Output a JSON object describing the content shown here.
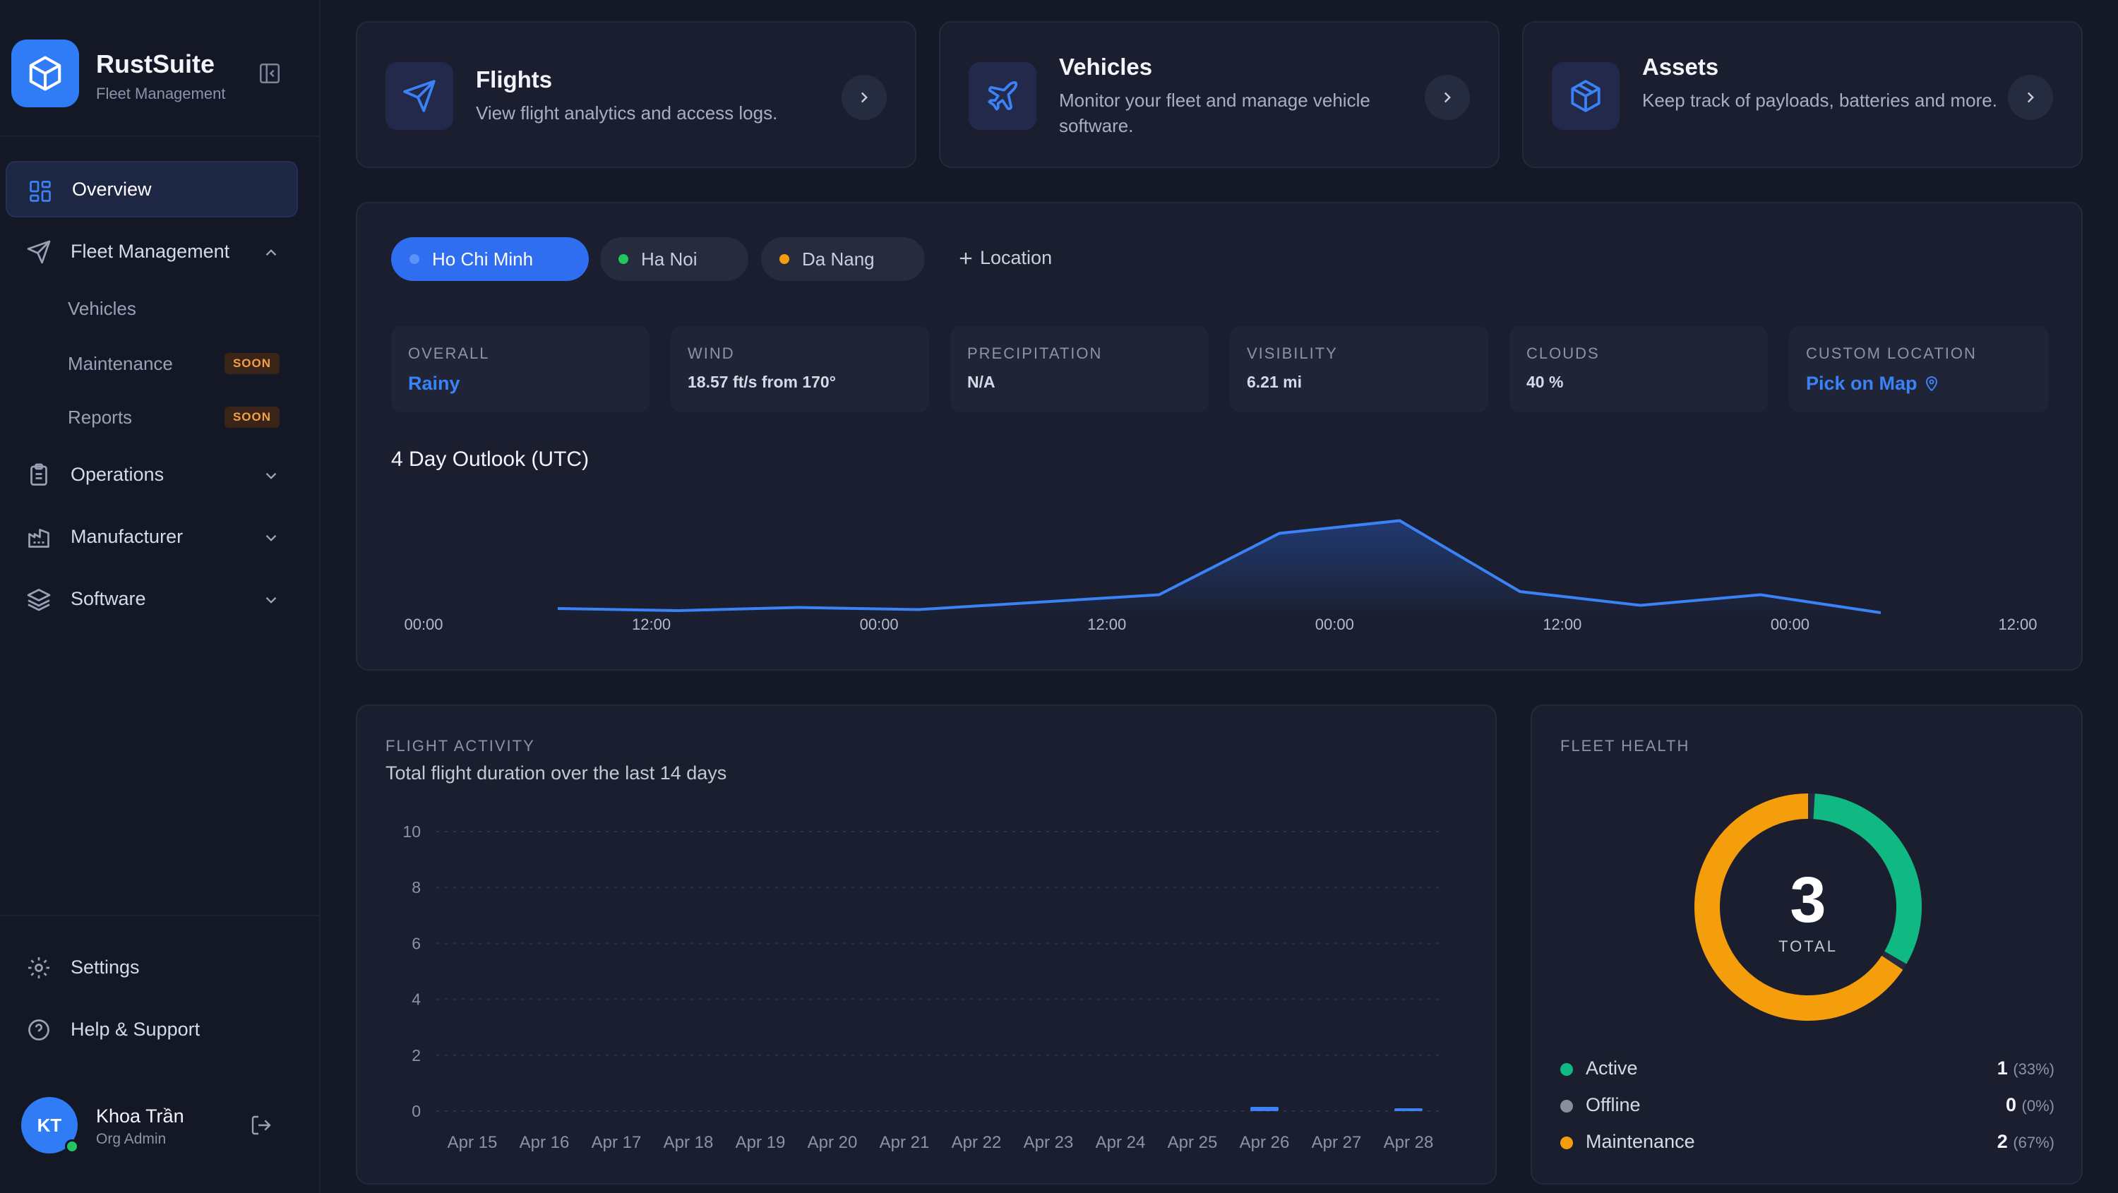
{
  "brand": {
    "name": "RustSuite",
    "subtitle": "Fleet Management"
  },
  "nav": {
    "overview": "Overview",
    "fleet_management": "Fleet Management",
    "fleet_sub": [
      {
        "label": "Vehicles",
        "badge": ""
      },
      {
        "label": "Maintenance",
        "badge": "SOON"
      },
      {
        "label": "Reports",
        "badge": "SOON"
      }
    ],
    "operations": "Operations",
    "manufacturer": "Manufacturer",
    "software": "Software",
    "settings": "Settings",
    "help": "Help & Support"
  },
  "user": {
    "initials": "KT",
    "name": "Khoa Trần",
    "role": "Org Admin"
  },
  "top_cards": [
    {
      "title": "Flights",
      "desc": "View flight analytics and access logs.",
      "icon": "send-icon"
    },
    {
      "title": "Vehicles",
      "desc": "Monitor your fleet and manage vehicle software.",
      "icon": "plane-icon"
    },
    {
      "title": "Assets",
      "desc": "Keep track of payloads, batteries and more.",
      "icon": "box-icon"
    }
  ],
  "weather": {
    "locations": [
      {
        "name": "Ho Chi Minh",
        "dot": "#3b82f6",
        "active": true
      },
      {
        "name": "Ha Noi",
        "dot": "#22c55e",
        "active": false
      },
      {
        "name": "Da Nang",
        "dot": "#f59e0b",
        "active": false
      }
    ],
    "add_location": "Location",
    "metrics": [
      {
        "label": "OVERALL",
        "value": "Rainy"
      },
      {
        "label": "WIND",
        "value": "18.57 ft/s from 170°"
      },
      {
        "label": "PRECIPITATION",
        "value": "N/A"
      },
      {
        "label": "VISIBILITY",
        "value": "6.21 mi"
      },
      {
        "label": "CLOUDS",
        "value": "40 %"
      },
      {
        "label": "CUSTOM LOCATION",
        "value": "Pick on Map"
      }
    ],
    "outlook_title": "4 Day Outlook (UTC)",
    "outlook_ticks": [
      "00:00",
      "12:00",
      "00:00",
      "12:00",
      "00:00",
      "12:00",
      "00:00",
      "12:00"
    ],
    "outlook_values": [
      0.12,
      0.1,
      0.13,
      0.11,
      0.18,
      0.25,
      0.83,
      0.95,
      0.28,
      0.15,
      0.25,
      0.08
    ]
  },
  "flight_activity": {
    "label": "FLIGHT ACTIVITY",
    "subtitle": "Total flight duration over the last 14 days"
  },
  "fleet_health": {
    "label": "FLEET HEALTH",
    "total": "3",
    "total_label": "TOTAL",
    "items": [
      {
        "name": "Active",
        "count": "1",
        "pct": "(33%)",
        "color": "#10b981"
      },
      {
        "name": "Offline",
        "count": "0",
        "pct": "(0%)",
        "color": "#8a8f9c"
      },
      {
        "name": "Maintenance",
        "count": "2",
        "pct": "(67%)",
        "color": "#f59e0b"
      }
    ]
  },
  "chart_data": [
    {
      "type": "bar",
      "title": "Total flight duration over the last 14 days",
      "categories": [
        "Apr 15",
        "Apr 16",
        "Apr 17",
        "Apr 18",
        "Apr 19",
        "Apr 20",
        "Apr 21",
        "Apr 22",
        "Apr 23",
        "Apr 24",
        "Apr 25",
        "Apr 26",
        "Apr 27",
        "Apr 28"
      ],
      "values": [
        0,
        0,
        0,
        0,
        0,
        0,
        0,
        0,
        0,
        0,
        0,
        0.15,
        0,
        0.1
      ],
      "ylim": [
        0,
        10
      ],
      "yticks": [
        0,
        2,
        4,
        6,
        8,
        10
      ],
      "grid": true,
      "color": "#3b82f6"
    },
    {
      "type": "pie",
      "title": "",
      "categories": [
        "Active",
        "Offline",
        "Maintenance"
      ],
      "values": [
        1,
        0,
        2
      ],
      "colors": [
        "#10b981",
        "#8a8f9c",
        "#f59e0b"
      ]
    }
  ]
}
